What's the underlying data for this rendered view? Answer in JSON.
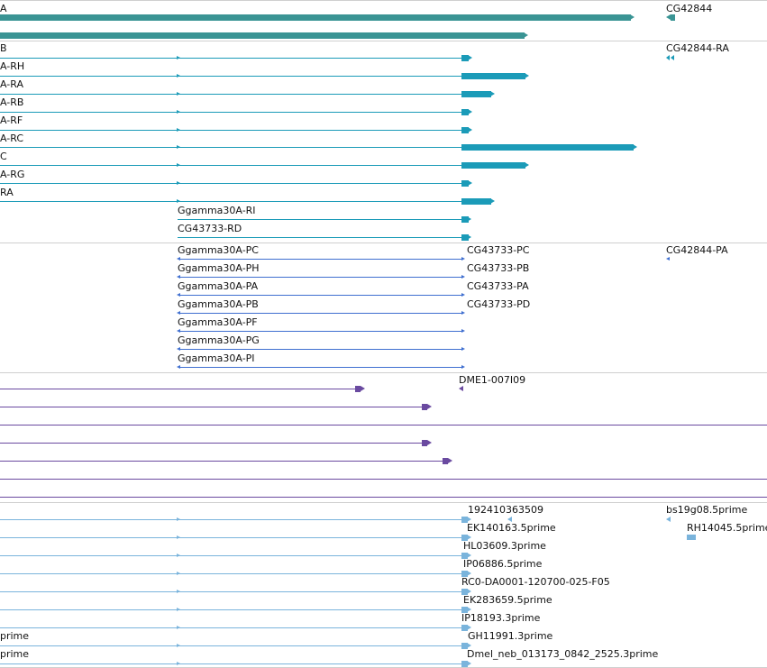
{
  "colors": {
    "gene": "#3a9494",
    "mrna": "#1b9bb8",
    "protein": "#3f6fd0",
    "clone": "#6a4aa0",
    "est": "#7ab4dc",
    "separator": "#cfcfcf"
  },
  "tracks": {
    "gene": {
      "labels": [
        "A",
        "CG42844"
      ],
      "features": [
        "gene-ggamma30a",
        "gene-ggamma30a-b",
        "gene-cg42844"
      ]
    },
    "mrna": {
      "labels": [
        "B",
        "CG42844-RA",
        "A-RH",
        "A-RA",
        "A-RB",
        "A-RF",
        "A-RC",
        "C",
        "A-RG",
        "RA",
        "Ggamma30A-RI",
        "CG43733-RD"
      ]
    },
    "protein": {
      "labels": [
        "Ggamma30A-PC",
        "CG43733-PC",
        "CG42844-PA",
        "Ggamma30A-PH",
        "CG43733-PB",
        "Ggamma30A-PA",
        "CG43733-PA",
        "Ggamma30A-PB",
        "CG43733-PD",
        "Ggamma30A-PF",
        "Ggamma30A-PG",
        "Ggamma30A-PI"
      ]
    },
    "clone": {
      "labels": [
        "DME1-007I09"
      ]
    },
    "est": {
      "labels": [
        "192410363509",
        "bs19g08.5prime",
        "EK140163.5prime",
        "RH14045.5prime",
        "HL03609.3prime",
        "IP06886.5prime",
        "RC0-DA0001-120700-025-F05",
        "EK283659.5prime",
        "IP18193.3prime",
        "prime",
        "GH11991.3prime",
        "prime",
        "Dmel_neb_013173_0842_2525.3prime"
      ]
    }
  }
}
